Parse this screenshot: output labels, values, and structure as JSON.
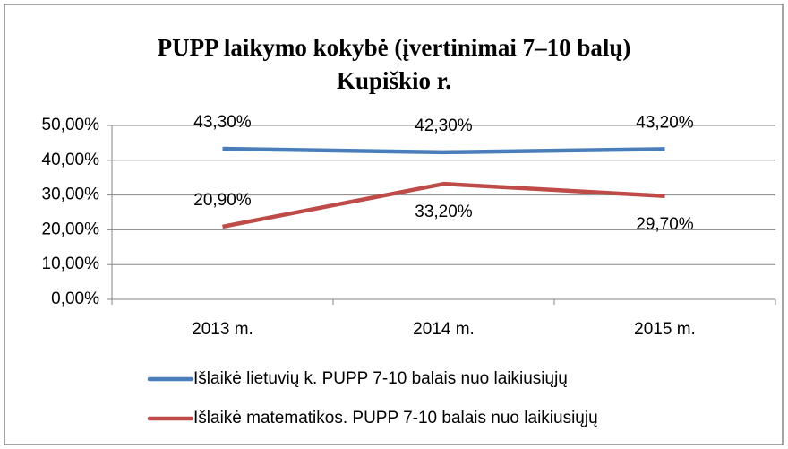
{
  "chart_data": {
    "type": "line",
    "title": [
      "PUPP laikymo kokybė (įvertinimai 7–10 balų)",
      "Kupiškio r."
    ],
    "categories": [
      "2013 m.",
      "2014 m.",
      "2015 m."
    ],
    "series": [
      {
        "name": "Išlaikė lietuvių k. PUPP 7-10 balais nuo laikiusiųjų",
        "color": "#4a7ebb",
        "values": [
          43.3,
          42.3,
          43.2
        ],
        "value_labels": [
          "43,30%",
          "42,30%",
          "43,20%"
        ]
      },
      {
        "name": "Išlaikė matematikos. PUPP 7-10 balais nuo laikiusiųjų",
        "color": "#be4b48",
        "values": [
          20.9,
          33.2,
          29.7
        ],
        "value_labels": [
          "20,90%",
          "33,20%",
          "29,70%"
        ]
      }
    ],
    "ylim": [
      0,
      50
    ],
    "yticks": [
      {
        "value": 0,
        "label": "0,00%"
      },
      {
        "value": 10,
        "label": "10,00%"
      },
      {
        "value": 20,
        "label": "20,00%"
      },
      {
        "value": 30,
        "label": "30,00%"
      },
      {
        "value": 40,
        "label": "40,00%"
      },
      {
        "value": 50,
        "label": "50,00%"
      }
    ],
    "grid": true,
    "legend": "bottom"
  }
}
